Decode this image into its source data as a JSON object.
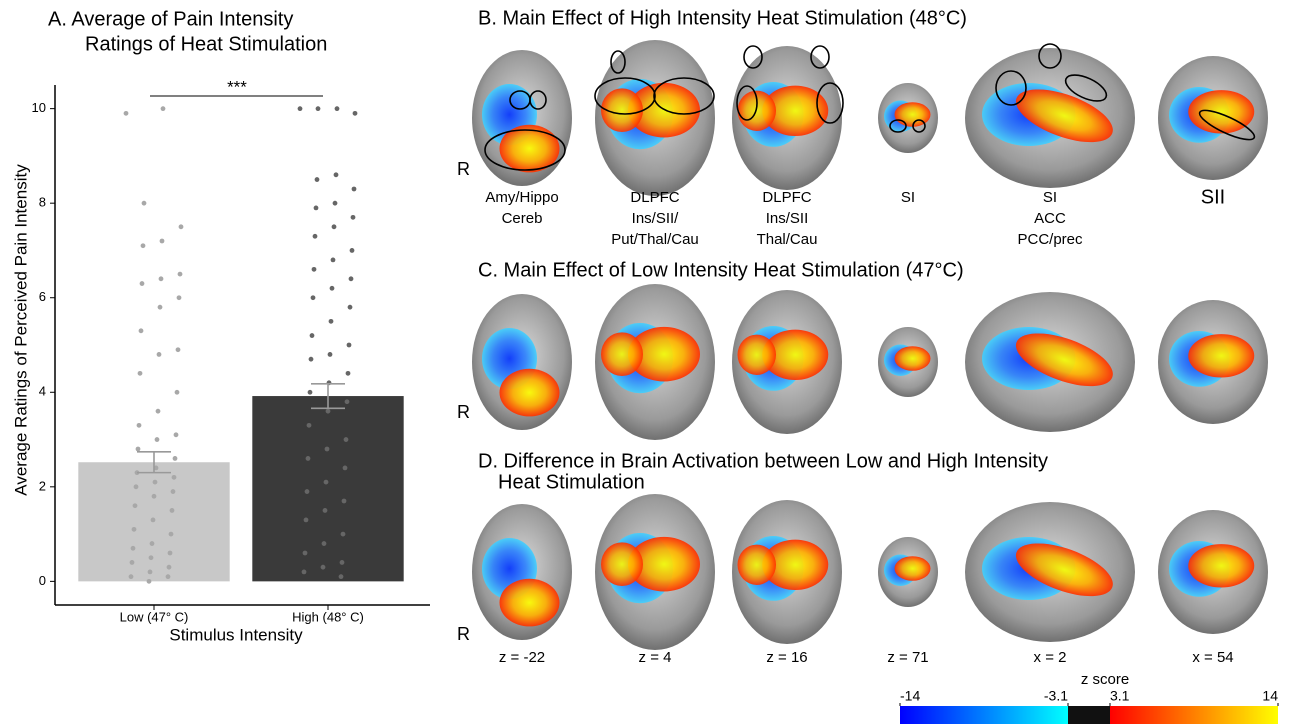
{
  "chart_data": {
    "type": "bar",
    "title_lines": [
      "A.  Average of Pain Intensity",
      "Ratings of Heat Stimulation"
    ],
    "xlabel": "Stimulus Intensity",
    "ylabel": "Average Ratings of Perceived Pain Intensity",
    "categories": [
      "Low (47° C)",
      "High (48° C)"
    ],
    "values": [
      2.52,
      3.92
    ],
    "errors": [
      0.22,
      0.26
    ],
    "colors": [
      "#c8c8c8",
      "#3a3a3a"
    ],
    "points": [
      {
        "color": "#a8a8a8",
        "values": [
          9.9,
          10,
          8,
          7.5,
          7.2,
          7.1,
          6.5,
          6.4,
          6.3,
          6.0,
          5.8,
          5.3,
          4.9,
          4.8,
          4.4,
          4.0,
          3.6,
          3.3,
          3.1,
          3.0,
          2.8,
          2.6,
          2.4,
          2.3,
          2.2,
          2.1,
          2.0,
          1.9,
          1.8,
          1.6,
          1.5,
          1.3,
          1.1,
          1.0,
          0.8,
          0.7,
          0.6,
          0.5,
          0.4,
          0.3,
          0.2,
          0.1,
          0.1,
          0.0
        ]
      },
      {
        "color": "#666666",
        "values": [
          10,
          10,
          10,
          9.9,
          8.6,
          8.5,
          8.3,
          8.0,
          7.9,
          7.7,
          7.5,
          7.3,
          7.0,
          6.8,
          6.6,
          6.4,
          6.2,
          6.0,
          5.8,
          5.5,
          5.2,
          5.0,
          4.8,
          4.7,
          4.4,
          4.2,
          4.0,
          3.8,
          3.6,
          3.3,
          3.0,
          2.8,
          2.6,
          2.4,
          2.1,
          1.9,
          1.7,
          1.5,
          1.3,
          1.0,
          0.8,
          0.6,
          0.4,
          0.3,
          0.2,
          0.1
        ]
      }
    ],
    "annotation": "***",
    "ylim": [
      -0.5,
      10.5
    ],
    "yticks": [
      0,
      2,
      4,
      6,
      8,
      10
    ]
  },
  "brain_figure": {
    "panels": [
      {
        "title": "B.   Main Effect of High Intensity Heat Stimulation (48°C)",
        "side": "R"
      },
      {
        "title": "C.   Main Effect of Low Intensity Heat Stimulation (47°C)",
        "side": "R"
      },
      {
        "title_lines": [
          "D.   Difference in Brain Activation between Low and High Intensity",
          "Heat Stimulation"
        ],
        "side": "R"
      }
    ],
    "region_labels": [
      [
        "Amy/Hippo",
        "Cereb"
      ],
      [
        "DLPFC",
        "Ins/SII/",
        "Put/Thal/Cau"
      ],
      [
        "DLPFC",
        "Ins/SII",
        "Thal/Cau"
      ],
      [
        "SI"
      ],
      [
        "SI",
        "ACC",
        "PCC/prec"
      ],
      [
        "SII"
      ]
    ],
    "slice_labels": [
      "z = -22",
      "z = 4",
      "z = 16",
      "z = 71",
      "x = 2",
      "x = 54"
    ],
    "colorbar": {
      "label": "z score",
      "ticks": [
        -14,
        -3.1,
        3.1,
        14
      ]
    }
  }
}
